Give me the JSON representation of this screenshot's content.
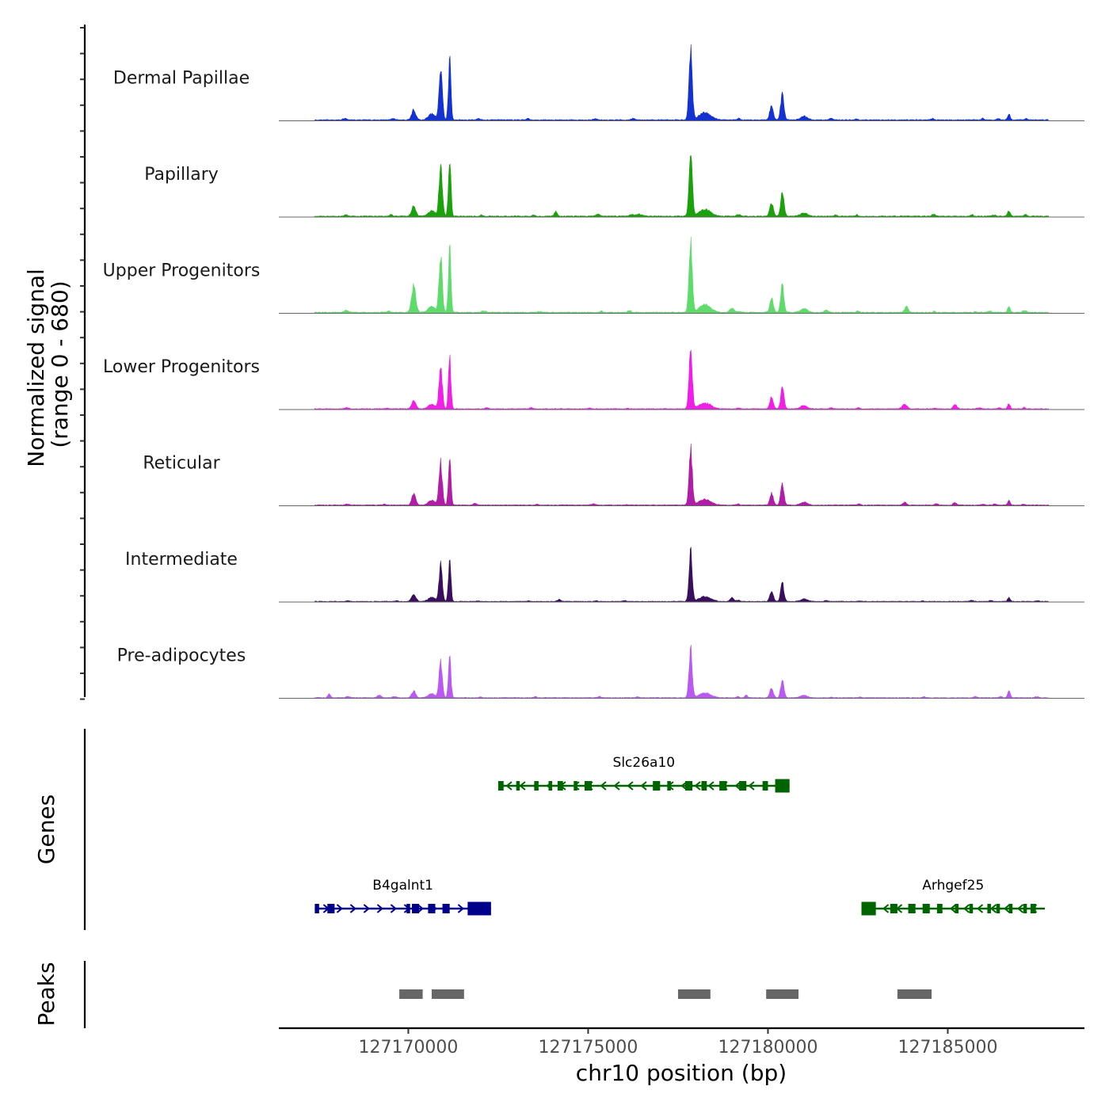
{
  "chart_data": {
    "type": "area",
    "title": "",
    "ylabel_lines": [
      "Normalized signal",
      "(range 0 - 680)"
    ],
    "ylim": [
      0,
      680
    ],
    "xlabel": "chr10 position (bp)",
    "xlim": [
      127166400,
      127188800
    ],
    "x_ticks": [
      127170000,
      127175000,
      127180000,
      127185000
    ],
    "x_tick_labels": [
      "127170000",
      "127175000",
      "127180000",
      "127185000"
    ],
    "peak_template": [
      {
        "pos": 127170150,
        "width": 180,
        "rel": 0.14
      },
      {
        "pos": 127170900,
        "width": 140,
        "rel": 0.75
      },
      {
        "pos": 127171150,
        "width": 110,
        "rel": 0.85
      },
      {
        "pos": 127170650,
        "width": 300,
        "rel": 0.08
      },
      {
        "pos": 127177850,
        "width": 140,
        "rel": 1.0
      },
      {
        "pos": 127178250,
        "width": 500,
        "rel": 0.1
      },
      {
        "pos": 127180100,
        "width": 150,
        "rel": 0.2
      },
      {
        "pos": 127180400,
        "width": 140,
        "rel": 0.37
      },
      {
        "pos": 127181000,
        "width": 300,
        "rel": 0.05
      },
      {
        "pos": 127186700,
        "width": 110,
        "rel": 0.08
      }
    ],
    "series": [
      {
        "name": "Dermal Papillae",
        "color": "#1432d2",
        "scale": 0.97,
        "extra": []
      },
      {
        "name": "Papillary",
        "color": "#1aa10b",
        "scale": 0.93,
        "extra": [
          {
            "pos": 127174100,
            "width": 120,
            "rel": 0.08
          },
          {
            "pos": 127176400,
            "width": 300,
            "rel": 0.03
          }
        ]
      },
      {
        "name": "Upper Progenitors",
        "color": "#5fdb6c",
        "scale": 1.0,
        "extra": [
          {
            "pos": 127170150,
            "width": 180,
            "rel": 0.22
          },
          {
            "pos": 127183850,
            "width": 150,
            "rel": 0.08
          },
          {
            "pos": 127179000,
            "width": 200,
            "rel": 0.05
          }
        ]
      },
      {
        "name": "Lower Progenitors",
        "color": "#f01ee6",
        "scale": 0.8,
        "extra": [
          {
            "pos": 127183800,
            "width": 200,
            "rel": 0.08
          },
          {
            "pos": 127185200,
            "width": 160,
            "rel": 0.07
          }
        ]
      },
      {
        "name": "Reticular",
        "color": "#b01da7",
        "scale": 0.78,
        "extra": [
          {
            "pos": 127170150,
            "width": 150,
            "rel": 0.06
          },
          {
            "pos": 127183800,
            "width": 150,
            "rel": 0.05
          },
          {
            "pos": 127185200,
            "width": 150,
            "rel": 0.04
          }
        ]
      },
      {
        "name": "Intermediate",
        "color": "#3a0f5e",
        "scale": 0.67,
        "extra": [
          {
            "pos": 127179000,
            "width": 150,
            "rel": 0.08
          },
          {
            "pos": 127174200,
            "width": 150,
            "rel": 0.04
          }
        ]
      },
      {
        "name": "Pre-adipocytes",
        "color": "#b959f2",
        "scale": 0.65,
        "extra": [
          {
            "pos": 127167800,
            "width": 110,
            "rel": 0.09
          },
          {
            "pos": 127169200,
            "width": 150,
            "rel": 0.06
          },
          {
            "pos": 127179400,
            "width": 110,
            "rel": 0.06
          },
          {
            "pos": 127186700,
            "width": 110,
            "rel": 0.06
          }
        ]
      }
    ],
    "genes_track_label": "Genes",
    "genes": [
      {
        "name": "Slc26a10",
        "start": 127172500,
        "end": 127180600,
        "strand": "-",
        "row": 0,
        "color": "#006400",
        "exons": [
          [
            127172500,
            127172650
          ],
          [
            127173000,
            127173100
          ],
          [
            127173500,
            127173620
          ],
          [
            127173900,
            127174000
          ],
          [
            127174150,
            127174300
          ],
          [
            127174600,
            127174700
          ],
          [
            127174900,
            127175100
          ],
          [
            127176800,
            127177000
          ],
          [
            127177200,
            127177300
          ],
          [
            127177700,
            127177900
          ],
          [
            127178150,
            127178300
          ],
          [
            127178650,
            127178850
          ],
          [
            127179200,
            127179400
          ],
          [
            127179850,
            127180000
          ],
          [
            127180200,
            127180600
          ]
        ]
      },
      {
        "name": "B4galnt1",
        "start": 127167400,
        "end": 127172300,
        "strand": "+",
        "row": 1,
        "color": "#00008b",
        "exons": [
          [
            127167400,
            127167520
          ],
          [
            127167750,
            127167950
          ],
          [
            127169950,
            127170050
          ],
          [
            127170100,
            127170300
          ],
          [
            127170550,
            127170750
          ],
          [
            127170950,
            127171150
          ],
          [
            127171650,
            127172300
          ]
        ]
      },
      {
        "name": "Arhgef25",
        "start": 127182600,
        "end": 127187700,
        "strand": "-",
        "row": 1,
        "color": "#006400",
        "exons": [
          [
            127182600,
            127183000
          ],
          [
            127183400,
            127183600
          ],
          [
            127183900,
            127184100
          ],
          [
            127184300,
            127184500
          ],
          [
            127184700,
            127184850
          ],
          [
            127185200,
            127185300
          ],
          [
            127185600,
            127185700
          ],
          [
            127186100,
            127186200
          ],
          [
            127186350,
            127186450
          ],
          [
            127186700,
            127186800
          ],
          [
            127187100,
            127187200
          ],
          [
            127187300,
            127187450
          ]
        ]
      }
    ],
    "peaks_track_label": "Peaks",
    "peaks": [
      [
        127169750,
        127170400
      ],
      [
        127170650,
        127171550
      ],
      [
        127177500,
        127178400
      ],
      [
        127179950,
        127180850
      ],
      [
        127183600,
        127184550
      ]
    ],
    "peak_color": "#666666"
  }
}
